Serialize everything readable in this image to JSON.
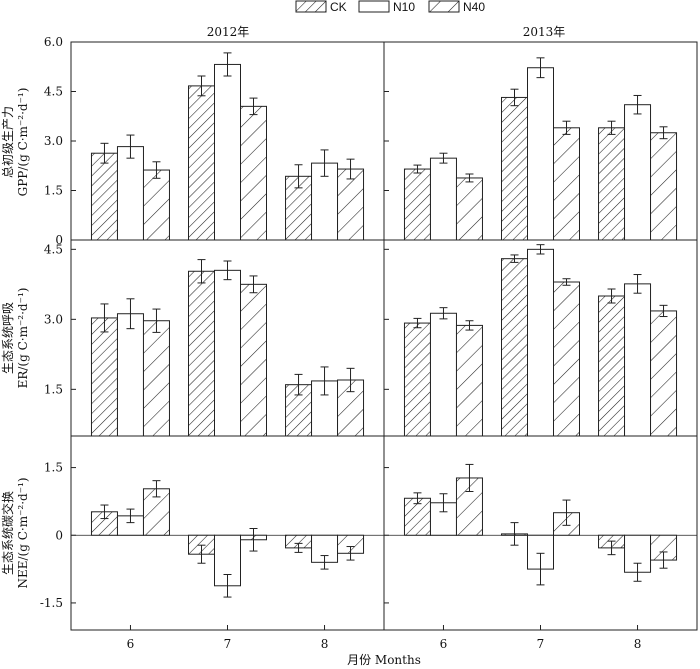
{
  "legend": [
    "CK",
    "N10",
    "N40"
  ],
  "xlabel": "月份 Months",
  "chart_data": [
    {
      "type": "bar",
      "title": "2012年",
      "row": 0,
      "col": 0,
      "ylabel_cn": "总初级生产力",
      "ylabel_en": "GPP/(g C·m⁻²·d⁻¹)",
      "ylim": [
        0,
        6.0
      ],
      "yticks": [
        "0",
        "1.5",
        "3.0",
        "4.5",
        "6.0"
      ],
      "categories": [
        "6",
        "7",
        "8"
      ],
      "series": [
        {
          "name": "CK",
          "values": [
            2.63,
            4.67,
            1.93
          ],
          "errors": [
            0.3,
            0.3,
            0.35
          ]
        },
        {
          "name": "N10",
          "values": [
            2.83,
            5.32,
            2.33
          ],
          "errors": [
            0.35,
            0.35,
            0.4
          ]
        },
        {
          "name": "N40",
          "values": [
            2.12,
            4.05,
            2.15
          ],
          "errors": [
            0.25,
            0.25,
            0.3
          ]
        }
      ]
    },
    {
      "type": "bar",
      "title": "2013年",
      "row": 0,
      "col": 1,
      "ylim": [
        0,
        6.0
      ],
      "categories": [
        "6",
        "7",
        "8"
      ],
      "series": [
        {
          "name": "CK",
          "values": [
            2.15,
            4.32,
            3.4
          ],
          "errors": [
            0.12,
            0.25,
            0.2
          ]
        },
        {
          "name": "N10",
          "values": [
            2.48,
            5.22,
            4.1
          ],
          "errors": [
            0.15,
            0.3,
            0.28
          ]
        },
        {
          "name": "N40",
          "values": [
            1.88,
            3.4,
            3.25
          ],
          "errors": [
            0.12,
            0.2,
            0.18
          ]
        }
      ]
    },
    {
      "type": "bar",
      "row": 1,
      "col": 0,
      "ylabel_cn": "生态系统呼吸",
      "ylabel_en": "ER/(g C·m⁻²·d⁻¹)",
      "ylim": [
        0.5,
        4.7
      ],
      "yticks": [
        "1.5",
        "3.0",
        "4.5"
      ],
      "categories": [
        "6",
        "7",
        "8"
      ],
      "series": [
        {
          "name": "CK",
          "values": [
            3.03,
            4.03,
            1.6
          ],
          "errors": [
            0.3,
            0.25,
            0.22
          ]
        },
        {
          "name": "N10",
          "values": [
            3.12,
            4.05,
            1.68
          ],
          "errors": [
            0.32,
            0.2,
            0.3
          ]
        },
        {
          "name": "N40",
          "values": [
            2.97,
            3.75,
            1.7
          ],
          "errors": [
            0.25,
            0.18,
            0.25
          ]
        }
      ]
    },
    {
      "type": "bar",
      "row": 1,
      "col": 1,
      "ylim": [
        0.5,
        4.7
      ],
      "categories": [
        "6",
        "7",
        "8"
      ],
      "series": [
        {
          "name": "CK",
          "values": [
            2.92,
            4.3,
            3.5
          ],
          "errors": [
            0.1,
            0.08,
            0.15
          ]
        },
        {
          "name": "N10",
          "values": [
            3.13,
            4.5,
            3.76
          ],
          "errors": [
            0.12,
            0.1,
            0.2
          ]
        },
        {
          "name": "N40",
          "values": [
            2.87,
            3.8,
            3.18
          ],
          "errors": [
            0.1,
            0.07,
            0.12
          ]
        }
      ]
    },
    {
      "type": "bar",
      "row": 2,
      "col": 0,
      "ylabel_cn": "生态系统碳交换",
      "ylabel_en": "NEE/(g C·m⁻²·d⁻¹)",
      "ylim": [
        -2.1,
        2.2
      ],
      "yticks": [
        "-1.5",
        "0",
        "1.5"
      ],
      "categories": [
        "6",
        "7",
        "8"
      ],
      "series": [
        {
          "name": "CK",
          "values": [
            0.52,
            -0.42,
            -0.28
          ],
          "errors": [
            0.15,
            0.2,
            0.1
          ]
        },
        {
          "name": "N10",
          "values": [
            0.43,
            -1.12,
            -0.6
          ],
          "errors": [
            0.15,
            0.25,
            0.15
          ]
        },
        {
          "name": "N40",
          "values": [
            1.03,
            -0.1,
            -0.4
          ],
          "errors": [
            0.18,
            0.25,
            0.15
          ]
        }
      ]
    },
    {
      "type": "bar",
      "row": 2,
      "col": 1,
      "ylim": [
        -2.1,
        2.2
      ],
      "categories": [
        "6",
        "7",
        "8"
      ],
      "series": [
        {
          "name": "CK",
          "values": [
            0.82,
            0.03,
            -0.28
          ],
          "errors": [
            0.12,
            0.25,
            0.15
          ]
        },
        {
          "name": "N10",
          "values": [
            0.72,
            -0.75,
            -0.82
          ],
          "errors": [
            0.2,
            0.35,
            0.2
          ]
        },
        {
          "name": "N40",
          "values": [
            1.27,
            0.5,
            -0.55
          ],
          "errors": [
            0.3,
            0.28,
            0.18
          ]
        }
      ]
    }
  ]
}
